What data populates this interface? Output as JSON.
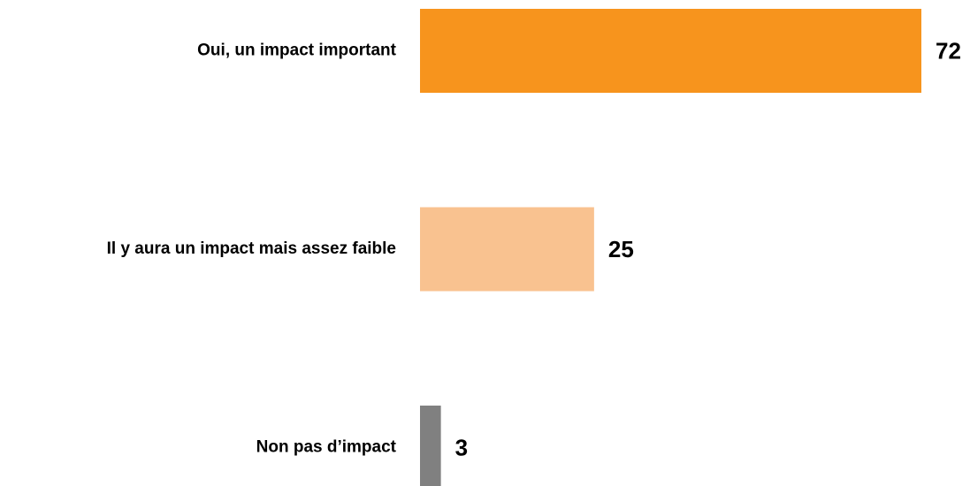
{
  "chart_data": {
    "type": "bar",
    "orientation": "horizontal",
    "categories": [
      "Oui, un impact important",
      "Il y aura un impact mais assez faible",
      "Non pas d’impact"
    ],
    "values": [
      72,
      25,
      3
    ],
    "colors": [
      "#f7941d",
      "#f9c290",
      "#808080"
    ]
  }
}
